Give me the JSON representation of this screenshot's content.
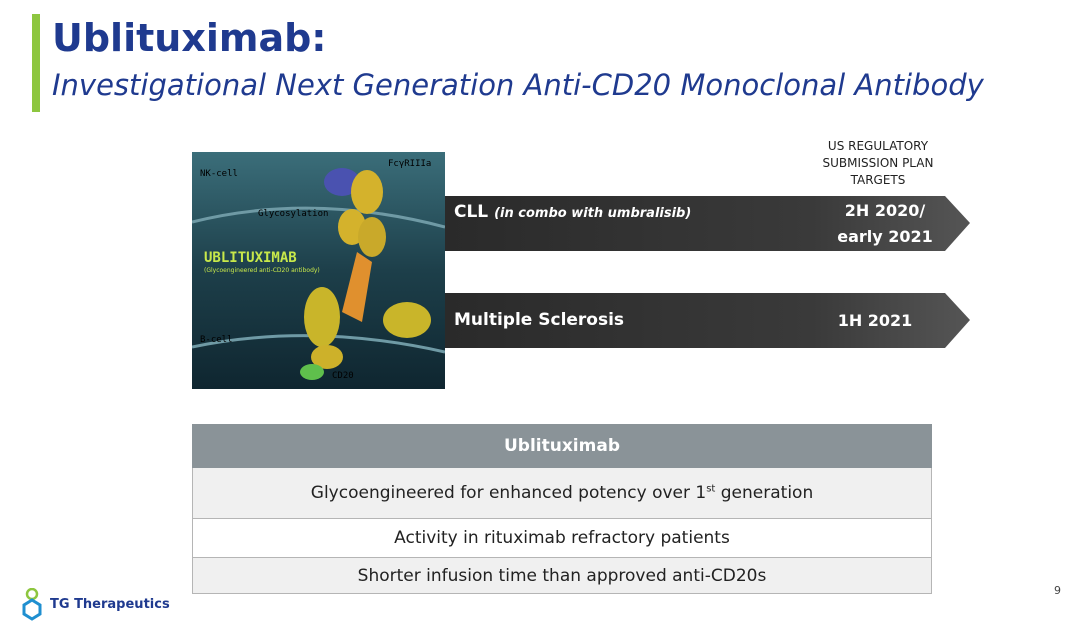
{
  "header": {
    "title": "Ublituximab:",
    "subtitle": "Investigational Next Generation Anti-CD20 Monoclonal Antibody"
  },
  "image": {
    "labels": [
      "NK-cell",
      "FcγRIIIa",
      "Glycosylation",
      "UBLITUXIMAB",
      "(Glycoengineered anti-CD20 antibody)",
      "B-cell",
      "CD20"
    ]
  },
  "targets_header": [
    "US REGULATORY",
    "SUBMISSION PLAN",
    "TARGETS"
  ],
  "plans": [
    {
      "indication": "CLL",
      "note": "(in combo with umbralisib)",
      "target": [
        "2H 2020/",
        "early 2021"
      ]
    },
    {
      "indication": "Multiple Sclerosis",
      "target": [
        "1H 2021"
      ]
    }
  ],
  "table": {
    "header": "Ublituximab",
    "rows": [
      [
        "Glycoengineered for enhanced potency over 1",
        "st",
        " generation"
      ],
      [
        "Activity in rituximab refractory patients"
      ],
      [
        "Shorter infusion time than approved anti-CD20s"
      ]
    ]
  },
  "footer": {
    "company": "TG Therapeutics",
    "page": "9"
  }
}
